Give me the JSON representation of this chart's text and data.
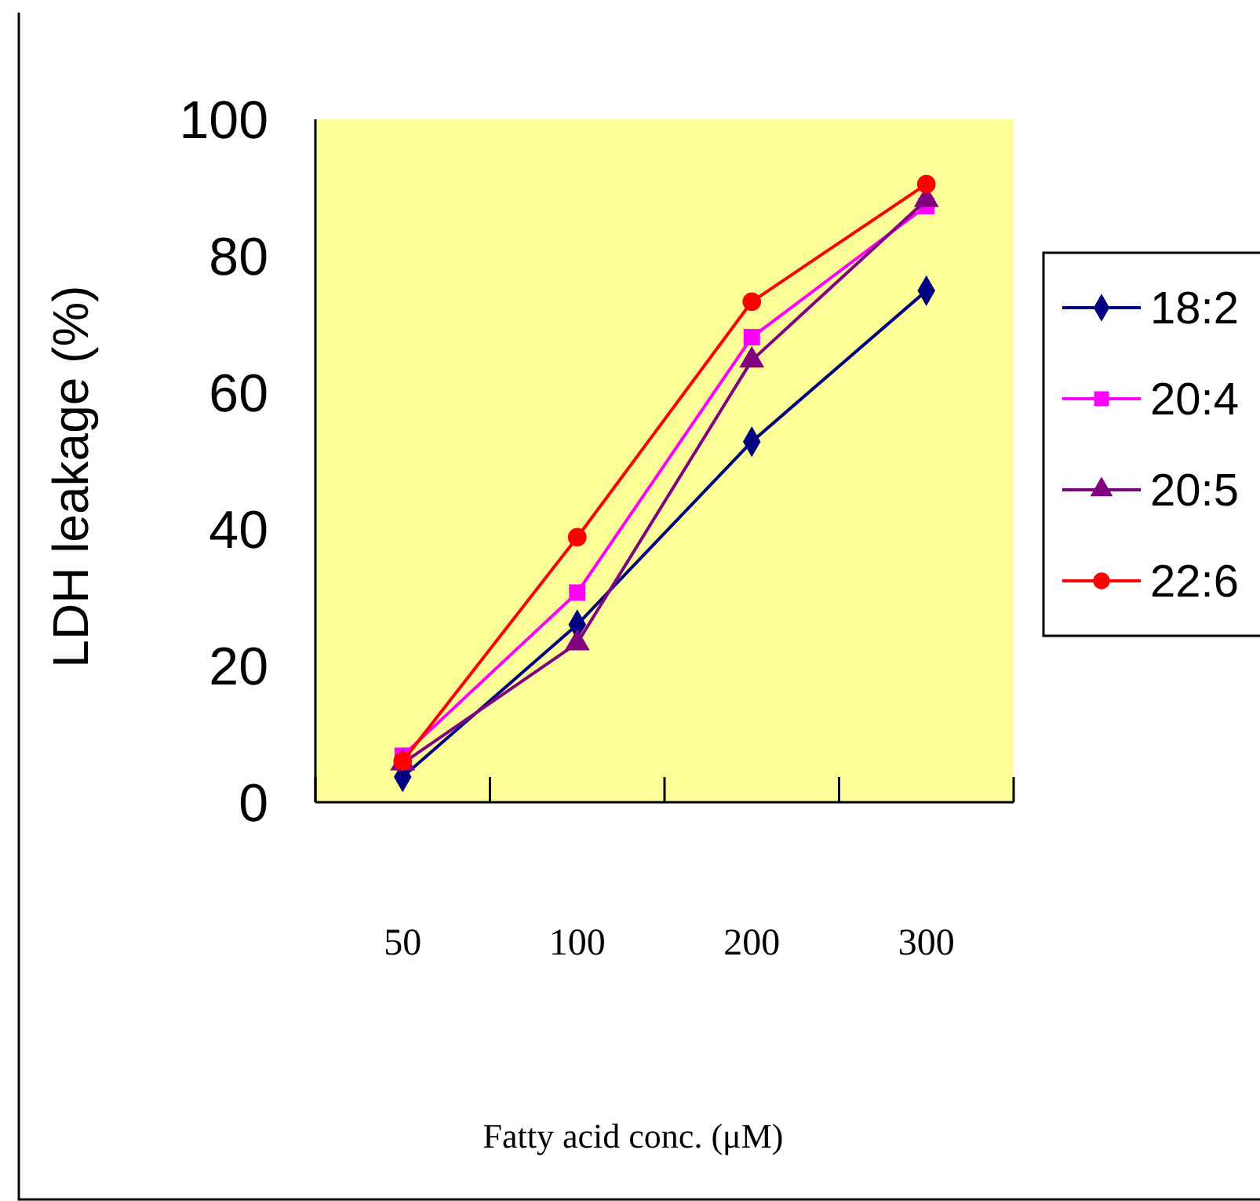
{
  "chart_data": {
    "type": "line",
    "xlabel": "Fatty acid conc. (μM)",
    "ylabel": "LDH leakage (%)",
    "categories": [
      "50",
      "100",
      "200",
      "300"
    ],
    "ylim": [
      0,
      100
    ],
    "yticks": [
      0,
      20,
      40,
      60,
      80,
      100
    ],
    "grid": false,
    "legend": "right",
    "series": [
      {
        "name": "18:2",
        "color": "#000080",
        "marker": "diamond",
        "values": [
          3.7,
          26,
          52.8,
          74.9
        ]
      },
      {
        "name": "20:4",
        "color": "#ff00ff",
        "marker": "square",
        "values": [
          6.8,
          30.7,
          68.1,
          87.3
        ]
      },
      {
        "name": "20:5",
        "color": "#800080",
        "marker": "triangle",
        "values": [
          5.7,
          23.3,
          64.7,
          88.2
        ]
      },
      {
        "name": "22:6",
        "color": "#ff0000",
        "marker": "circle",
        "values": [
          6,
          38.8,
          73.3,
          90.5
        ]
      }
    ]
  }
}
